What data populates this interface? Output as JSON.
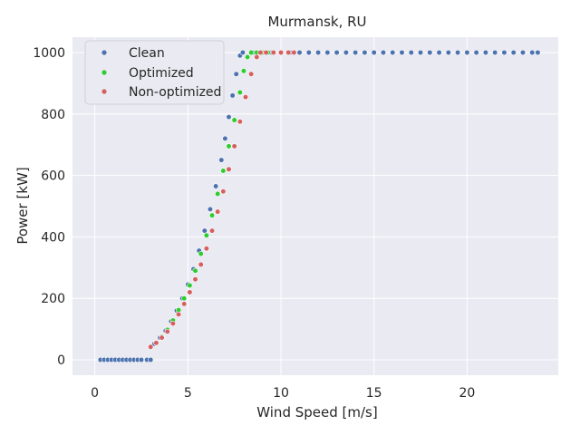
{
  "chart_data": {
    "type": "scatter",
    "title": "Murmansk, RU",
    "xlabel": "Wind Speed [m/s]",
    "ylabel": "Power [kW]",
    "xlim": [
      -1.2,
      24.9
    ],
    "ylim": [
      -50,
      1050
    ],
    "xticks": [
      0,
      5,
      10,
      15,
      20
    ],
    "yticks": [
      0,
      200,
      400,
      600,
      800,
      1000
    ],
    "grid": true,
    "legend_position": "upper-left",
    "colors": {
      "background": "#eaeaf2",
      "grid": "#ffffff",
      "Clean": "#4c72b0",
      "Optimized": "#2ecc2e",
      "Non-optimized": "#d65f5f"
    },
    "series": [
      {
        "name": "Clean",
        "points": [
          [
            0.3,
            0
          ],
          [
            0.5,
            0
          ],
          [
            0.7,
            0
          ],
          [
            0.9,
            0
          ],
          [
            1.1,
            0
          ],
          [
            1.3,
            0
          ],
          [
            1.5,
            0
          ],
          [
            1.7,
            0
          ],
          [
            1.9,
            0
          ],
          [
            2.1,
            0
          ],
          [
            2.3,
            0
          ],
          [
            2.5,
            0
          ],
          [
            2.8,
            0
          ],
          [
            3.0,
            0
          ],
          [
            3.2,
            52
          ],
          [
            3.5,
            72
          ],
          [
            3.8,
            95
          ],
          [
            4.1,
            125
          ],
          [
            4.4,
            160
          ],
          [
            4.7,
            200
          ],
          [
            5.0,
            245
          ],
          [
            5.3,
            295
          ],
          [
            5.6,
            355
          ],
          [
            5.9,
            420
          ],
          [
            6.2,
            490
          ],
          [
            6.5,
            565
          ],
          [
            6.8,
            650
          ],
          [
            7.0,
            720
          ],
          [
            7.2,
            790
          ],
          [
            7.4,
            860
          ],
          [
            7.6,
            930
          ],
          [
            7.8,
            990
          ],
          [
            7.95,
            1000
          ],
          [
            8.5,
            1000
          ],
          [
            9.5,
            1000
          ],
          [
            10.5,
            1000
          ],
          [
            11.0,
            1000
          ],
          [
            11.5,
            1000
          ],
          [
            12.0,
            1000
          ],
          [
            12.5,
            1000
          ],
          [
            13.0,
            1000
          ],
          [
            13.5,
            1000
          ],
          [
            14.0,
            1000
          ],
          [
            14.5,
            1000
          ],
          [
            15.0,
            1000
          ],
          [
            15.5,
            1000
          ],
          [
            16.0,
            1000
          ],
          [
            16.5,
            1000
          ],
          [
            17.0,
            1000
          ],
          [
            17.5,
            1000
          ],
          [
            18.0,
            1000
          ],
          [
            18.5,
            1000
          ],
          [
            19.0,
            1000
          ],
          [
            19.5,
            1000
          ],
          [
            20.0,
            1000
          ],
          [
            20.5,
            1000
          ],
          [
            21.0,
            1000
          ],
          [
            21.5,
            1000
          ],
          [
            22.0,
            1000
          ],
          [
            22.5,
            1000
          ],
          [
            23.0,
            1000
          ],
          [
            23.5,
            1000
          ],
          [
            23.8,
            1000
          ]
        ]
      },
      {
        "name": "Optimized",
        "points": [
          [
            3.3,
            55
          ],
          [
            3.6,
            75
          ],
          [
            3.9,
            98
          ],
          [
            4.2,
            128
          ],
          [
            4.5,
            162
          ],
          [
            4.8,
            200
          ],
          [
            5.1,
            242
          ],
          [
            5.4,
            290
          ],
          [
            5.7,
            345
          ],
          [
            6.0,
            405
          ],
          [
            6.3,
            470
          ],
          [
            6.6,
            540
          ],
          [
            6.9,
            615
          ],
          [
            7.2,
            695
          ],
          [
            7.5,
            780
          ],
          [
            7.8,
            870
          ],
          [
            8.0,
            940
          ],
          [
            8.2,
            985
          ],
          [
            8.4,
            1000
          ],
          [
            8.7,
            1000
          ],
          [
            9.0,
            1000
          ],
          [
            9.3,
            1000
          ]
        ]
      },
      {
        "name": "Non-optimized",
        "points": [
          [
            3.0,
            42
          ],
          [
            3.3,
            55
          ],
          [
            3.6,
            72
          ],
          [
            3.9,
            92
          ],
          [
            4.2,
            118
          ],
          [
            4.5,
            148
          ],
          [
            4.8,
            182
          ],
          [
            5.1,
            220
          ],
          [
            5.4,
            262
          ],
          [
            5.7,
            310
          ],
          [
            6.0,
            362
          ],
          [
            6.3,
            420
          ],
          [
            6.6,
            482
          ],
          [
            6.9,
            548
          ],
          [
            7.2,
            620
          ],
          [
            7.5,
            695
          ],
          [
            7.8,
            775
          ],
          [
            8.1,
            855
          ],
          [
            8.4,
            930
          ],
          [
            8.7,
            985
          ],
          [
            8.9,
            1000
          ],
          [
            9.2,
            1000
          ],
          [
            9.6,
            1000
          ],
          [
            10.0,
            1000
          ],
          [
            10.4,
            1000
          ],
          [
            10.7,
            1000
          ]
        ]
      }
    ]
  }
}
